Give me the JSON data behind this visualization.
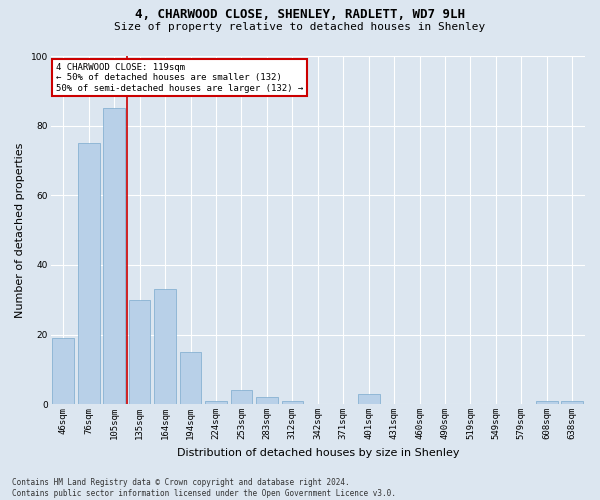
{
  "title1": "4, CHARWOOD CLOSE, SHENLEY, RADLETT, WD7 9LH",
  "title2": "Size of property relative to detached houses in Shenley",
  "xlabel": "Distribution of detached houses by size in Shenley",
  "ylabel": "Number of detached properties",
  "categories": [
    "46sqm",
    "76sqm",
    "105sqm",
    "135sqm",
    "164sqm",
    "194sqm",
    "224sqm",
    "253sqm",
    "283sqm",
    "312sqm",
    "342sqm",
    "371sqm",
    "401sqm",
    "431sqm",
    "460sqm",
    "490sqm",
    "519sqm",
    "549sqm",
    "579sqm",
    "608sqm",
    "638sqm"
  ],
  "values": [
    19,
    75,
    85,
    30,
    33,
    15,
    1,
    4,
    2,
    1,
    0,
    0,
    3,
    0,
    0,
    0,
    0,
    0,
    0,
    1,
    1
  ],
  "bar_color": "#b8d0e8",
  "bar_edge_color": "#7aaace",
  "vline_x": 2.5,
  "vline_color": "#cc0000",
  "annotation_title": "4 CHARWOOD CLOSE: 119sqm",
  "annotation_line1": "← 50% of detached houses are smaller (132)",
  "annotation_line2": "50% of semi-detached houses are larger (132) →",
  "annotation_box_color": "#ffffff",
  "annotation_box_edge": "#cc0000",
  "footer1": "Contains HM Land Registry data © Crown copyright and database right 2024.",
  "footer2": "Contains public sector information licensed under the Open Government Licence v3.0.",
  "bg_color": "#dce6f0",
  "plot_bg_color": "#dce6f0",
  "ylim": [
    0,
    100
  ],
  "yticks": [
    0,
    20,
    40,
    60,
    80,
    100
  ],
  "title1_fontsize": 9,
  "title2_fontsize": 8,
  "xlabel_fontsize": 8,
  "ylabel_fontsize": 8,
  "tick_fontsize": 6.5,
  "ann_fontsize": 6.5,
  "footer_fontsize": 5.5
}
